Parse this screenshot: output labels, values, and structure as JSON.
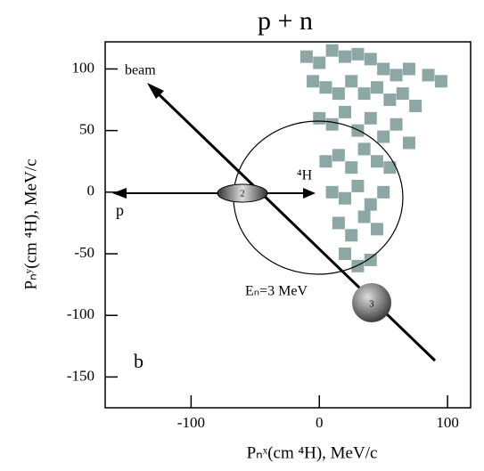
{
  "chart_data": {
    "type": "scatter",
    "title": "p + n",
    "x_label": "Pₙˣ(cm ⁴H), MeV/c",
    "y_label": "Pₙʸ(cm ⁴H), MeV/c",
    "xlim": [
      -167,
      118
    ],
    "ylim": [
      -175,
      122
    ],
    "xticks": [
      -100,
      0,
      100
    ],
    "yticks": [
      -150,
      -100,
      -50,
      0,
      50,
      100
    ],
    "grid": false,
    "color": "#2f5f5a",
    "annotations": {
      "beam": "beam",
      "p": "p",
      "h4": "⁴H",
      "energy": "Eₙ=3 MeV",
      "panel": "b",
      "ball2": "2",
      "ball3": "3"
    },
    "series": [
      {
        "name": null,
        "color": "#2f5f5a",
        "x": [
          -10,
          0,
          10,
          20,
          30,
          40,
          50,
          60,
          70,
          85,
          95,
          -5,
          5,
          15,
          25,
          35,
          45,
          55,
          65,
          75,
          0,
          10,
          20,
          30,
          40,
          50,
          60,
          70,
          5,
          15,
          25,
          35,
          45,
          55,
          10,
          20,
          30,
          40,
          50,
          15,
          25,
          35,
          45,
          20,
          30,
          40
        ],
        "values": [
          110,
          105,
          115,
          110,
          112,
          108,
          100,
          95,
          100,
          95,
          90,
          90,
          85,
          80,
          90,
          80,
          85,
          75,
          80,
          70,
          60,
          55,
          65,
          50,
          60,
          45,
          55,
          40,
          25,
          30,
          20,
          35,
          25,
          20,
          0,
          -5,
          5,
          -10,
          0,
          -25,
          -35,
          -20,
          -30,
          -50,
          -60,
          -55
        ]
      }
    ]
  }
}
